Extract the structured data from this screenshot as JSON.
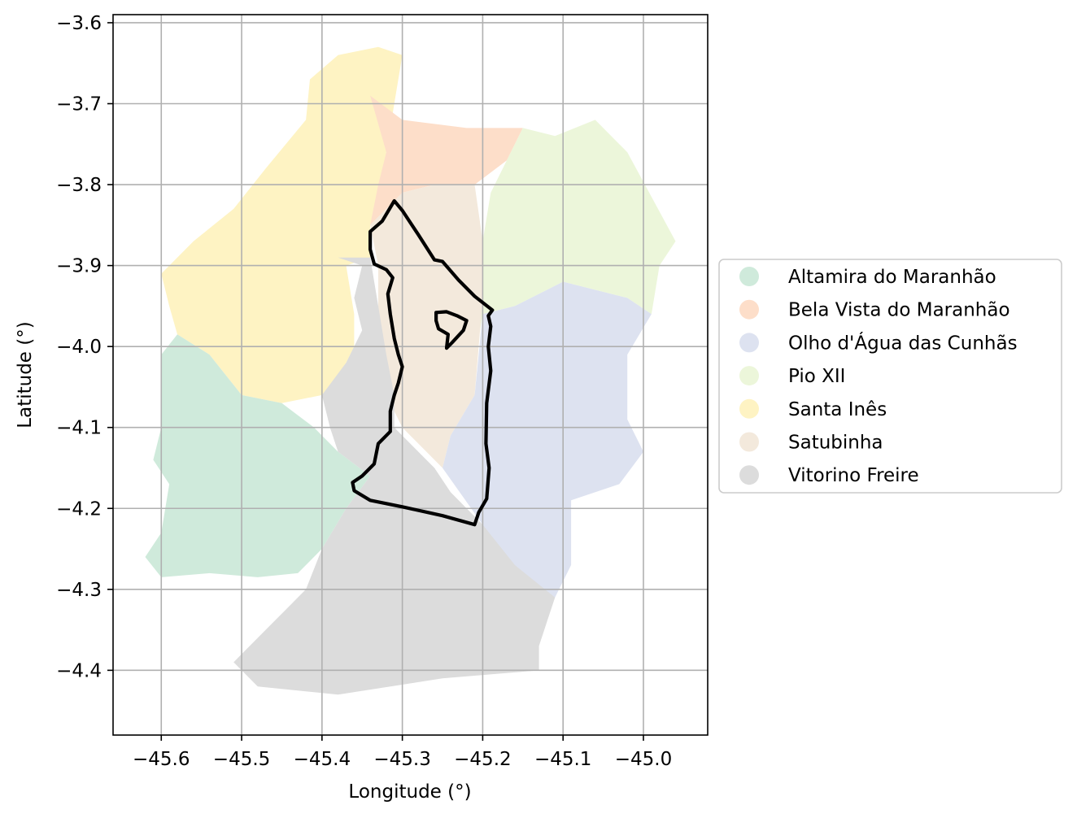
{
  "figure": {
    "xlabel": "Longitude (°)",
    "ylabel": "Latitude (°)"
  },
  "axes": {
    "xlim": [
      -45.66,
      -44.92
    ],
    "ylim": [
      -4.48,
      -3.59
    ],
    "grid": true,
    "x_ticks": [
      {
        "value": -45.6,
        "label": "−45.6"
      },
      {
        "value": -45.5,
        "label": "−45.5"
      },
      {
        "value": -45.4,
        "label": "−45.4"
      },
      {
        "value": -45.3,
        "label": "−45.3"
      },
      {
        "value": -45.2,
        "label": "−45.2"
      },
      {
        "value": -45.1,
        "label": "−45.1"
      },
      {
        "value": -45.0,
        "label": "−45.0"
      }
    ],
    "y_ticks": [
      {
        "value": -3.6,
        "label": "−3.6"
      },
      {
        "value": -3.7,
        "label": "−3.7"
      },
      {
        "value": -3.8,
        "label": "−3.8"
      },
      {
        "value": -3.9,
        "label": "−3.9"
      },
      {
        "value": -4.0,
        "label": "−4.0"
      },
      {
        "value": -4.1,
        "label": "−4.1"
      },
      {
        "value": -4.2,
        "label": "−4.2"
      },
      {
        "value": -4.3,
        "label": "−4.3"
      },
      {
        "value": -4.4,
        "label": "−4.4"
      }
    ]
  },
  "legend": {
    "placement": "center-right-outside",
    "items": [
      {
        "name": "Altamira do Maranhão",
        "color": "#cfeadb"
      },
      {
        "name": "Bela Vista do Maranhão",
        "color": "#fddec9"
      },
      {
        "name": "Olho d'Água das Cunhãs",
        "color": "#dde2f0"
      },
      {
        "name": "Pio XII",
        "color": "#ecf6da"
      },
      {
        "name": "Santa Inês",
        "color": "#fef3c3"
      },
      {
        "name": "Satubinha",
        "color": "#f3e9dc"
      },
      {
        "name": "Vitorino Freire",
        "color": "#dcdcdc"
      }
    ]
  },
  "chart_data": {
    "type": "map",
    "regions": [
      {
        "name": "Santa Inês",
        "color": "#fef3c3",
        "coords": [
          [
            -45.6,
            -3.91
          ],
          [
            -45.56,
            -3.87
          ],
          [
            -45.51,
            -3.83
          ],
          [
            -45.47,
            -3.78
          ],
          [
            -45.42,
            -3.72
          ],
          [
            -45.415,
            -3.67
          ],
          [
            -45.38,
            -3.64
          ],
          [
            -45.33,
            -3.63
          ],
          [
            -45.3,
            -3.64
          ],
          [
            -45.31,
            -3.7
          ],
          [
            -45.32,
            -3.76
          ],
          [
            -45.33,
            -3.81
          ],
          [
            -45.34,
            -3.85
          ],
          [
            -45.34,
            -3.89
          ],
          [
            -45.37,
            -3.9
          ],
          [
            -45.36,
            -3.96
          ],
          [
            -45.36,
            -4.0
          ],
          [
            -45.38,
            -4.04
          ],
          [
            -45.4,
            -4.06
          ],
          [
            -45.45,
            -4.07
          ],
          [
            -45.5,
            -4.06
          ],
          [
            -45.54,
            -4.01
          ],
          [
            -45.58,
            -3.985
          ],
          [
            -45.59,
            -3.95
          ]
        ]
      },
      {
        "name": "Bela Vista do Maranhão",
        "color": "#fddec9",
        "coords": [
          [
            -45.34,
            -3.69
          ],
          [
            -45.3,
            -3.72
          ],
          [
            -45.22,
            -3.73
          ],
          [
            -45.15,
            -3.73
          ],
          [
            -45.17,
            -3.77
          ],
          [
            -45.21,
            -3.8
          ],
          [
            -45.26,
            -3.8
          ],
          [
            -45.3,
            -3.81
          ],
          [
            -45.32,
            -3.83
          ],
          [
            -45.34,
            -3.85
          ],
          [
            -45.33,
            -3.8
          ],
          [
            -45.32,
            -3.76
          ]
        ]
      },
      {
        "name": "Pio XII",
        "color": "#ecf6da",
        "coords": [
          [
            -45.15,
            -3.73
          ],
          [
            -45.11,
            -3.74
          ],
          [
            -45.06,
            -3.72
          ],
          [
            -45.02,
            -3.76
          ],
          [
            -44.96,
            -3.87
          ],
          [
            -44.98,
            -3.9
          ],
          [
            -44.99,
            -3.96
          ],
          [
            -45.02,
            -3.94
          ],
          [
            -45.1,
            -3.92
          ],
          [
            -45.16,
            -3.95
          ],
          [
            -45.2,
            -3.96
          ],
          [
            -45.21,
            -4.02
          ],
          [
            -45.22,
            -4.06
          ],
          [
            -45.2,
            -3.94
          ],
          [
            -45.2,
            -3.87
          ],
          [
            -45.19,
            -3.81
          ],
          [
            -45.17,
            -3.77
          ]
        ]
      },
      {
        "name": "Satubinha",
        "color": "#f3e9dc",
        "coords": [
          [
            -45.3,
            -3.81
          ],
          [
            -45.26,
            -3.8
          ],
          [
            -45.21,
            -3.8
          ],
          [
            -45.2,
            -3.87
          ],
          [
            -45.2,
            -3.94
          ],
          [
            -45.21,
            -4.06
          ],
          [
            -45.24,
            -4.11
          ],
          [
            -45.25,
            -4.15
          ],
          [
            -45.27,
            -4.13
          ],
          [
            -45.3,
            -4.1
          ],
          [
            -45.32,
            -4.06
          ],
          [
            -45.33,
            -3.98
          ],
          [
            -45.33,
            -3.9
          ],
          [
            -45.34,
            -3.85
          ],
          [
            -45.32,
            -3.83
          ]
        ]
      },
      {
        "name": "Olho d'Água das Cunhãs",
        "color": "#dde2f0",
        "coords": [
          [
            -45.1,
            -3.92
          ],
          [
            -45.02,
            -3.94
          ],
          [
            -44.99,
            -3.96
          ],
          [
            -45.02,
            -4.01
          ],
          [
            -45.02,
            -4.09
          ],
          [
            -45.0,
            -4.13
          ],
          [
            -45.03,
            -4.17
          ],
          [
            -45.09,
            -4.19
          ],
          [
            -45.09,
            -4.27
          ],
          [
            -45.11,
            -4.31
          ],
          [
            -45.15,
            -4.33
          ],
          [
            -45.18,
            -4.26
          ],
          [
            -45.2,
            -4.22
          ],
          [
            -45.25,
            -4.15
          ],
          [
            -45.24,
            -4.11
          ],
          [
            -45.21,
            -4.06
          ],
          [
            -45.2,
            -3.96
          ],
          [
            -45.16,
            -3.95
          ]
        ]
      },
      {
        "name": "Altamira do Maranhão",
        "color": "#cfeadb",
        "coords": [
          [
            -45.58,
            -3.985
          ],
          [
            -45.54,
            -4.01
          ],
          [
            -45.5,
            -4.06
          ],
          [
            -45.45,
            -4.07
          ],
          [
            -45.41,
            -4.1
          ],
          [
            -45.38,
            -4.13
          ],
          [
            -45.34,
            -4.16
          ],
          [
            -45.37,
            -4.2
          ],
          [
            -45.4,
            -4.25
          ],
          [
            -45.43,
            -4.28
          ],
          [
            -45.48,
            -4.285
          ],
          [
            -45.54,
            -4.28
          ],
          [
            -45.6,
            -4.285
          ],
          [
            -45.62,
            -4.26
          ],
          [
            -45.6,
            -4.23
          ],
          [
            -45.59,
            -4.17
          ],
          [
            -45.61,
            -4.14
          ],
          [
            -45.6,
            -4.1
          ],
          [
            -45.6,
            -4.05
          ],
          [
            -45.6,
            -4.01
          ]
        ]
      },
      {
        "name": "Vitorino Freire",
        "color": "#dcdcdc",
        "coords": [
          [
            -45.38,
            -3.89
          ],
          [
            -45.34,
            -3.89
          ],
          [
            -45.33,
            -3.95
          ],
          [
            -45.32,
            -4.01
          ],
          [
            -45.31,
            -4.06
          ],
          [
            -45.31,
            -4.1
          ],
          [
            -45.26,
            -4.15
          ],
          [
            -45.24,
            -4.18
          ],
          [
            -45.2,
            -4.22
          ],
          [
            -45.16,
            -4.27
          ],
          [
            -45.11,
            -4.31
          ],
          [
            -45.12,
            -4.34
          ],
          [
            -45.13,
            -4.37
          ],
          [
            -45.13,
            -4.4
          ],
          [
            -45.25,
            -4.41
          ],
          [
            -45.38,
            -4.43
          ],
          [
            -45.48,
            -4.42
          ],
          [
            -45.51,
            -4.39
          ],
          [
            -45.48,
            -4.36
          ],
          [
            -45.45,
            -4.33
          ],
          [
            -45.42,
            -4.3
          ],
          [
            -45.4,
            -4.25
          ],
          [
            -45.37,
            -4.2
          ],
          [
            -45.34,
            -4.16
          ],
          [
            -45.38,
            -4.13
          ],
          [
            -45.39,
            -4.1
          ],
          [
            -45.4,
            -4.06
          ],
          [
            -45.37,
            -4.02
          ],
          [
            -45.35,
            -3.98
          ],
          [
            -45.36,
            -3.94
          ],
          [
            -45.35,
            -3.9
          ]
        ]
      }
    ],
    "highlight_outline": {
      "color": "#000000",
      "rings": [
        [
          [
            -45.31,
            -3.82
          ],
          [
            -45.3,
            -3.832
          ],
          [
            -45.28,
            -3.862
          ],
          [
            -45.26,
            -3.893
          ],
          [
            -45.25,
            -3.895
          ],
          [
            -45.23,
            -3.918
          ],
          [
            -45.21,
            -3.938
          ],
          [
            -45.188,
            -3.955
          ],
          [
            -45.193,
            -3.962
          ],
          [
            -45.19,
            -3.975
          ],
          [
            -45.193,
            -4.0
          ],
          [
            -45.19,
            -4.03
          ],
          [
            -45.195,
            -4.07
          ],
          [
            -45.196,
            -4.12
          ],
          [
            -45.192,
            -4.15
          ],
          [
            -45.195,
            -4.188
          ],
          [
            -45.205,
            -4.205
          ],
          [
            -45.21,
            -4.22
          ],
          [
            -45.25,
            -4.209
          ],
          [
            -45.3,
            -4.198
          ],
          [
            -45.34,
            -4.19
          ],
          [
            -45.36,
            -4.178
          ],
          [
            -45.362,
            -4.168
          ],
          [
            -45.35,
            -4.16
          ],
          [
            -45.335,
            -4.145
          ],
          [
            -45.33,
            -4.12
          ],
          [
            -45.315,
            -4.105
          ],
          [
            -45.315,
            -4.08
          ],
          [
            -45.31,
            -4.06
          ],
          [
            -45.305,
            -4.045
          ],
          [
            -45.3,
            -4.025
          ],
          [
            -45.305,
            -4.01
          ],
          [
            -45.31,
            -3.99
          ],
          [
            -45.315,
            -3.96
          ],
          [
            -45.318,
            -3.935
          ],
          [
            -45.312,
            -3.915
          ],
          [
            -45.32,
            -3.905
          ],
          [
            -45.335,
            -3.898
          ],
          [
            -45.34,
            -3.88
          ],
          [
            -45.34,
            -3.858
          ],
          [
            -45.325,
            -3.845
          ],
          [
            -45.31,
            -3.82
          ]
        ],
        [
          [
            -45.258,
            -3.958
          ],
          [
            -45.245,
            -3.957
          ],
          [
            -45.232,
            -3.962
          ],
          [
            -45.22,
            -3.968
          ],
          [
            -45.224,
            -3.98
          ],
          [
            -45.238,
            -3.995
          ],
          [
            -45.245,
            -4.002
          ],
          [
            -45.243,
            -3.985
          ],
          [
            -45.255,
            -3.978
          ],
          [
            -45.258,
            -3.968
          ]
        ]
      ]
    }
  }
}
